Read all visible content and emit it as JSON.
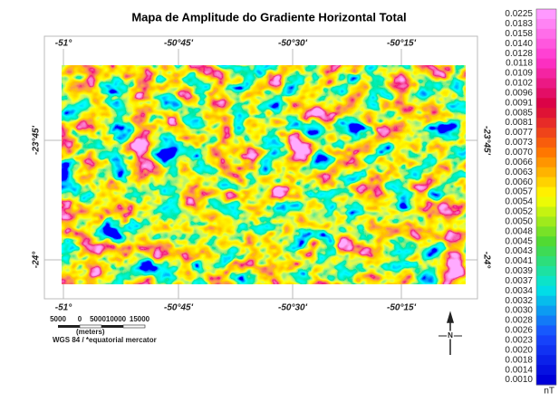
{
  "title": "Mapa de Amplitude do Gradiente Horizontal Total",
  "map": {
    "top_labels": [
      "-51°",
      "-50°45'",
      "-50°30'",
      "-50°15'"
    ],
    "bottom_labels": [
      "-51°",
      "-50°45'",
      "-50°30'",
      "-50°15'"
    ],
    "left_labels": [
      "-23°45'",
      "-24°"
    ],
    "right_labels": [
      "-23°45'",
      "-24°"
    ]
  },
  "scale_bar": {
    "labels": [
      "5000",
      "0",
      "5000",
      "10000",
      "15000"
    ],
    "unit": "(meters)",
    "projection": "WGS 84 / *equatorial mercator"
  },
  "north_label": "N",
  "colorbar": {
    "labels": [
      "0.0225",
      "0.0183",
      "0.0158",
      "0.0140",
      "0.0128",
      "0.0118",
      "0.0109",
      "0.0102",
      "0.0096",
      "0.0091",
      "0.0085",
      "0.0081",
      "0.0077",
      "0.0073",
      "0.0070",
      "0.0066",
      "0.0063",
      "0.0060",
      "0.0057",
      "0.0054",
      "0.0052",
      "0.0050",
      "0.0048",
      "0.0045",
      "0.0043",
      "0.0041",
      "0.0039",
      "0.0037",
      "0.0034",
      "0.0032",
      "0.0030",
      "0.0028",
      "0.0026",
      "0.0023",
      "0.0020",
      "0.0018",
      "0.0014",
      "0.0010"
    ],
    "unit": "nT"
  }
}
